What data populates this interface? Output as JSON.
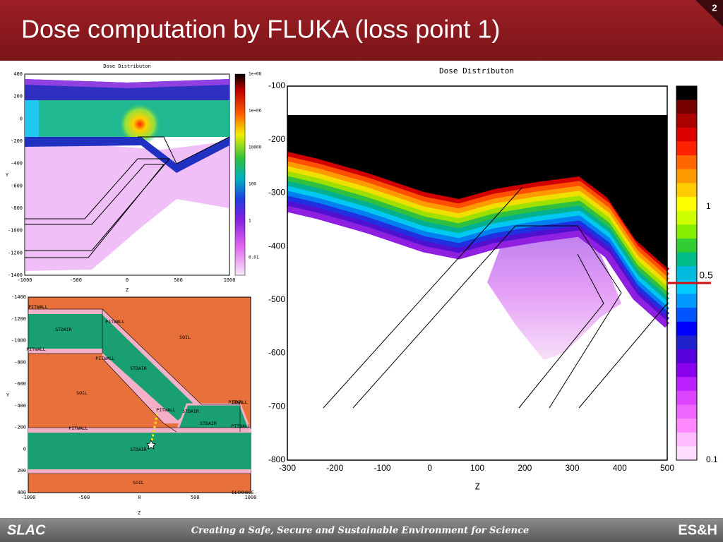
{
  "header": {
    "title": "Dose computation by FLUKA (loss point 1)",
    "page_number": "2"
  },
  "footer": {
    "left_logo": "SLAC",
    "tagline": "Creating a Safe, Secure and Sustainable Environment for Science",
    "right_logo": "ES&H"
  },
  "dose_map_small": {
    "title": "Dose Distributon",
    "x_label": "Z",
    "y_label": "Y",
    "x_ticks": [
      "-1000",
      "-500",
      "0",
      "500",
      "1000"
    ],
    "y_ticks": [
      "400",
      "200",
      "0",
      "-200",
      "-400",
      "-600",
      "-800",
      "-1000",
      "-1200",
      "-1400"
    ],
    "colorbar_ticks": [
      "1e+08",
      "1e+06",
      "10000",
      "100",
      "1",
      "0.01"
    ]
  },
  "geometry_map": {
    "x_label": "Z",
    "y_label": "Y",
    "x_ticks": [
      "-1000",
      "-500",
      "0",
      "500",
      "1000"
    ],
    "y_ticks": [
      "-1400",
      "-1200",
      "-1000",
      "-800",
      "-600",
      "-400",
      "-200",
      "0",
      "200",
      "400"
    ],
    "regions": [
      "PITWALL",
      "STDAIR",
      "PITWALL",
      "PITWALL",
      "SOIL",
      "PITWALL",
      "STDAIR",
      "SOIL",
      "PITWALL",
      "STDAIR",
      "STDAIR",
      "SOIL",
      "PITWALL",
      "STDAIR",
      "PITWALL",
      "PITWALL",
      "SOIL",
      "BLCKHOLE"
    ]
  },
  "dose_map_large": {
    "title": "Dose Distributon",
    "x_label": "Z",
    "x_ticks": [
      "-300",
      "-200",
      "-100",
      "0",
      "100",
      "200",
      "300",
      "400",
      "500"
    ],
    "y_ticks": [
      "-100",
      "-200",
      "-300",
      "-400",
      "-500",
      "-600",
      "-700",
      "-800"
    ],
    "colorbar_ticks": [
      "1",
      "0.5",
      "0.1"
    ]
  }
}
